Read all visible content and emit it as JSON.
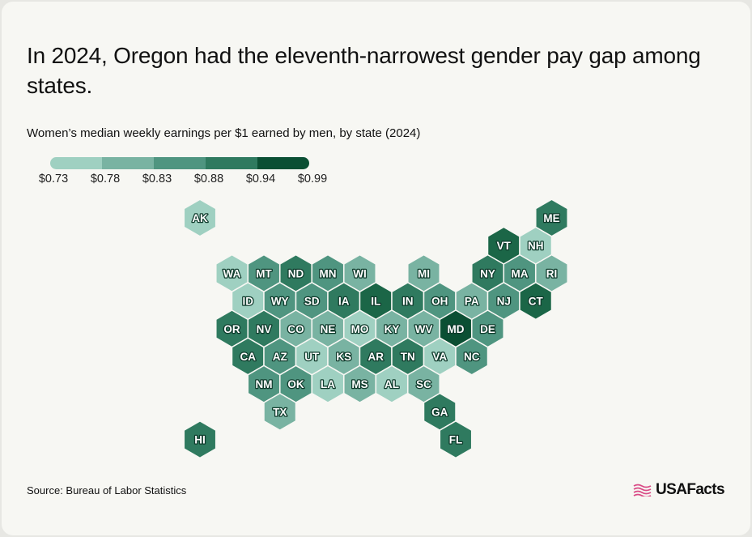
{
  "title": "In 2024, Oregon had the eleventh-narrowest gender pay gap among states.",
  "subtitle": "Women’s median weekly earnings per $1 earned by men, by state (2024)",
  "source": "Source: Bureau of Labor Statistics",
  "logo": {
    "text": "USAFacts",
    "icon": "flag-icon",
    "color": "#d94b86"
  },
  "colors": {
    "background": "#f7f7f3",
    "scale": [
      "#9fd0c1",
      "#79b3a2",
      "#4f9580",
      "#2f7a5f",
      "#1b6647",
      "#0b4f33"
    ]
  },
  "chart_data": {
    "type": "heatmap",
    "title": "In 2024, Oregon had the eleventh-narrowest gender pay gap among states.",
    "subtitle": "Women’s median weekly earnings per $1 earned by men, by state (2024)",
    "legend": {
      "labels": [
        "$0.73",
        "$0.78",
        "$0.83",
        "$0.88",
        "$0.94",
        "$0.99"
      ],
      "breaks": [
        0.73,
        0.78,
        0.83,
        0.88,
        0.94,
        0.99
      ]
    },
    "states": [
      {
        "abbr": "AK",
        "row": 0,
        "col": 2,
        "bin": 0
      },
      {
        "abbr": "ME",
        "row": 0,
        "col": 13,
        "bin": 3
      },
      {
        "abbr": "VT",
        "row": 1,
        "col": 11,
        "bin": 4
      },
      {
        "abbr": "NH",
        "row": 1,
        "col": 12,
        "bin": 0
      },
      {
        "abbr": "WA",
        "row": 2,
        "col": 3,
        "bin": 0
      },
      {
        "abbr": "MT",
        "row": 2,
        "col": 4,
        "bin": 2
      },
      {
        "abbr": "ND",
        "row": 2,
        "col": 5,
        "bin": 3
      },
      {
        "abbr": "MN",
        "row": 2,
        "col": 6,
        "bin": 2
      },
      {
        "abbr": "WI",
        "row": 2,
        "col": 7,
        "bin": 1
      },
      {
        "abbr": "MI",
        "row": 2,
        "col": 9,
        "bin": 1
      },
      {
        "abbr": "NY",
        "row": 2,
        "col": 11,
        "bin": 3
      },
      {
        "abbr": "MA",
        "row": 2,
        "col": 12,
        "bin": 2
      },
      {
        "abbr": "RI",
        "row": 2,
        "col": 13,
        "bin": 1
      },
      {
        "abbr": "ID",
        "row": 3,
        "col": 3,
        "bin": 0
      },
      {
        "abbr": "WY",
        "row": 3,
        "col": 4,
        "bin": 2
      },
      {
        "abbr": "SD",
        "row": 3,
        "col": 5,
        "bin": 2
      },
      {
        "abbr": "IA",
        "row": 3,
        "col": 6,
        "bin": 3
      },
      {
        "abbr": "IL",
        "row": 3,
        "col": 7,
        "bin": 4
      },
      {
        "abbr": "IN",
        "row": 3,
        "col": 8,
        "bin": 3
      },
      {
        "abbr": "OH",
        "row": 3,
        "col": 9,
        "bin": 2
      },
      {
        "abbr": "PA",
        "row": 3,
        "col": 10,
        "bin": 1
      },
      {
        "abbr": "NJ",
        "row": 3,
        "col": 11,
        "bin": 2
      },
      {
        "abbr": "CT",
        "row": 3,
        "col": 12,
        "bin": 4
      },
      {
        "abbr": "OR",
        "row": 4,
        "col": 3,
        "bin": 3
      },
      {
        "abbr": "NV",
        "row": 4,
        "col": 4,
        "bin": 3
      },
      {
        "abbr": "CO",
        "row": 4,
        "col": 5,
        "bin": 1
      },
      {
        "abbr": "NE",
        "row": 4,
        "col": 6,
        "bin": 1
      },
      {
        "abbr": "MO",
        "row": 4,
        "col": 7,
        "bin": 0
      },
      {
        "abbr": "KY",
        "row": 4,
        "col": 8,
        "bin": 1
      },
      {
        "abbr": "WV",
        "row": 4,
        "col": 9,
        "bin": 1
      },
      {
        "abbr": "MD",
        "row": 4,
        "col": 10,
        "bin": 5
      },
      {
        "abbr": "DE",
        "row": 4,
        "col": 11,
        "bin": 2
      },
      {
        "abbr": "CA",
        "row": 5,
        "col": 3,
        "bin": 3
      },
      {
        "abbr": "AZ",
        "row": 5,
        "col": 4,
        "bin": 2
      },
      {
        "abbr": "UT",
        "row": 5,
        "col": 5,
        "bin": 0
      },
      {
        "abbr": "KS",
        "row": 5,
        "col": 6,
        "bin": 1
      },
      {
        "abbr": "AR",
        "row": 5,
        "col": 7,
        "bin": 3
      },
      {
        "abbr": "TN",
        "row": 5,
        "col": 8,
        "bin": 3
      },
      {
        "abbr": "VA",
        "row": 5,
        "col": 9,
        "bin": 0
      },
      {
        "abbr": "NC",
        "row": 5,
        "col": 10,
        "bin": 2
      },
      {
        "abbr": "NM",
        "row": 6,
        "col": 4,
        "bin": 2
      },
      {
        "abbr": "OK",
        "row": 6,
        "col": 5,
        "bin": 2
      },
      {
        "abbr": "LA",
        "row": 6,
        "col": 6,
        "bin": 0
      },
      {
        "abbr": "MS",
        "row": 6,
        "col": 7,
        "bin": 1
      },
      {
        "abbr": "AL",
        "row": 6,
        "col": 8,
        "bin": 0
      },
      {
        "abbr": "SC",
        "row": 6,
        "col": 9,
        "bin": 1
      },
      {
        "abbr": "TX",
        "row": 7,
        "col": 4,
        "bin": 1
      },
      {
        "abbr": "GA",
        "row": 7,
        "col": 9,
        "bin": 3
      },
      {
        "abbr": "HI",
        "row": 8,
        "col": 2,
        "bin": 3
      },
      {
        "abbr": "FL",
        "row": 8,
        "col": 10,
        "bin": 3
      }
    ]
  }
}
